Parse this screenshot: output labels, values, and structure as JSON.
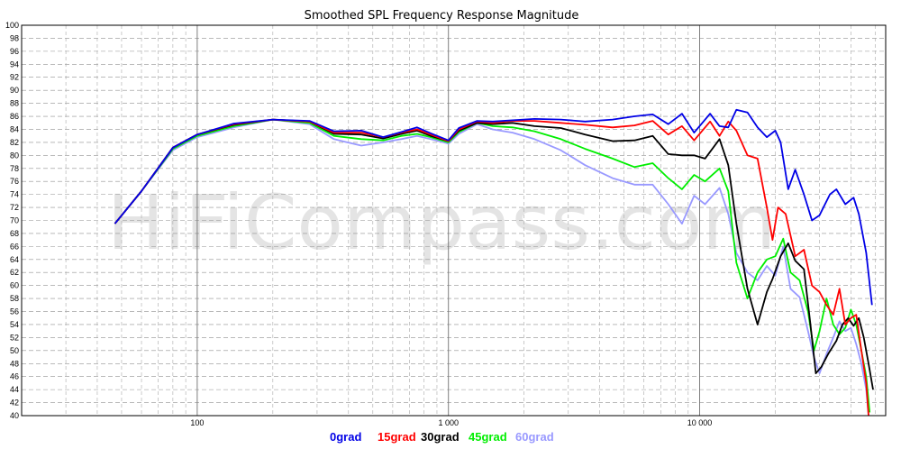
{
  "chart_data": {
    "type": "line",
    "title": "Smoothed SPL Frequency Response Magnitude",
    "watermark": "HiFiCompass.com",
    "x_scale": "log",
    "xlim": [
      20,
      55000
    ],
    "ylim": [
      40,
      100
    ],
    "grid": true,
    "legend_position": "bottom",
    "y_ticks": [
      40,
      42,
      44,
      46,
      48,
      50,
      52,
      54,
      56,
      58,
      60,
      62,
      64,
      66,
      68,
      70,
      72,
      74,
      76,
      78,
      80,
      82,
      84,
      86,
      88,
      90,
      92,
      94,
      96,
      98,
      100
    ],
    "x_ticks": [
      {
        "value": 100,
        "label": "100"
      },
      {
        "value": 1000,
        "label": "1 000"
      },
      {
        "value": 10000,
        "label": "10 000"
      }
    ],
    "series": [
      {
        "name": "0grad",
        "color": "#0000e6",
        "points": [
          [
            47,
            69.5
          ],
          [
            60,
            74.5
          ],
          [
            80,
            81.2
          ],
          [
            100,
            83.2
          ],
          [
            140,
            84.9
          ],
          [
            200,
            85.5
          ],
          [
            280,
            85.3
          ],
          [
            350,
            83.7
          ],
          [
            450,
            83.8
          ],
          [
            550,
            82.8
          ],
          [
            650,
            83.6
          ],
          [
            750,
            84.3
          ],
          [
            850,
            83.4
          ],
          [
            1000,
            82.3
          ],
          [
            1100,
            84.2
          ],
          [
            1300,
            85.3
          ],
          [
            1500,
            85.2
          ],
          [
            1800,
            85.4
          ],
          [
            2200,
            85.6
          ],
          [
            2800,
            85.5
          ],
          [
            3500,
            85.2
          ],
          [
            4500,
            85.5
          ],
          [
            5500,
            86.0
          ],
          [
            6500,
            86.3
          ],
          [
            7500,
            84.8
          ],
          [
            8500,
            86.4
          ],
          [
            9500,
            83.5
          ],
          [
            11000,
            86.4
          ],
          [
            12000,
            84.5
          ],
          [
            13000,
            84.3
          ],
          [
            14000,
            87.0
          ],
          [
            15500,
            86.6
          ],
          [
            17000,
            84.3
          ],
          [
            18500,
            82.8
          ],
          [
            20000,
            83.8
          ],
          [
            21000,
            82.0
          ],
          [
            22500,
            74.8
          ],
          [
            24000,
            77.8
          ],
          [
            26000,
            74.0
          ],
          [
            28000,
            70.0
          ],
          [
            30000,
            70.8
          ],
          [
            33000,
            74.0
          ],
          [
            35000,
            74.8
          ],
          [
            38000,
            72.5
          ],
          [
            41000,
            73.5
          ],
          [
            43000,
            71.0
          ],
          [
            46000,
            65.0
          ],
          [
            48500,
            57.0
          ]
        ]
      },
      {
        "name": "15grad",
        "color": "#ff0000",
        "points": [
          [
            47,
            69.5
          ],
          [
            60,
            74.5
          ],
          [
            80,
            81.2
          ],
          [
            100,
            83.2
          ],
          [
            140,
            84.8
          ],
          [
            200,
            85.5
          ],
          [
            280,
            85.2
          ],
          [
            350,
            83.5
          ],
          [
            450,
            83.5
          ],
          [
            550,
            82.8
          ],
          [
            650,
            83.5
          ],
          [
            750,
            84.0
          ],
          [
            850,
            83.2
          ],
          [
            1000,
            82.2
          ],
          [
            1100,
            84.0
          ],
          [
            1300,
            85.2
          ],
          [
            1500,
            85.0
          ],
          [
            1800,
            85.3
          ],
          [
            2200,
            85.3
          ],
          [
            2800,
            85.0
          ],
          [
            3500,
            84.7
          ],
          [
            4500,
            84.3
          ],
          [
            5500,
            84.6
          ],
          [
            6500,
            85.3
          ],
          [
            7500,
            83.2
          ],
          [
            8500,
            84.5
          ],
          [
            9500,
            82.3
          ],
          [
            11000,
            85.2
          ],
          [
            12000,
            83.0
          ],
          [
            13000,
            85.2
          ],
          [
            14000,
            83.8
          ],
          [
            15500,
            80.0
          ],
          [
            17000,
            79.5
          ],
          [
            18500,
            72.0
          ],
          [
            19500,
            67.0
          ],
          [
            20500,
            72.0
          ],
          [
            22000,
            71.0
          ],
          [
            24000,
            64.5
          ],
          [
            26000,
            65.5
          ],
          [
            28000,
            60.0
          ],
          [
            30000,
            59.0
          ],
          [
            32000,
            57.0
          ],
          [
            34000,
            55.5
          ],
          [
            36000,
            59.5
          ],
          [
            38000,
            54.0
          ],
          [
            40000,
            55.0
          ],
          [
            42000,
            55.5
          ],
          [
            44000,
            50.0
          ],
          [
            46000,
            45.0
          ],
          [
            47000,
            40.0
          ]
        ]
      },
      {
        "name": "30grad",
        "color": "#000000",
        "points": [
          [
            47,
            69.5
          ],
          [
            60,
            74.5
          ],
          [
            80,
            81.2
          ],
          [
            100,
            83.2
          ],
          [
            140,
            84.7
          ],
          [
            200,
            85.5
          ],
          [
            280,
            85.2
          ],
          [
            350,
            83.3
          ],
          [
            450,
            83.2
          ],
          [
            550,
            82.6
          ],
          [
            650,
            83.3
          ],
          [
            750,
            83.8
          ],
          [
            850,
            83.0
          ],
          [
            1000,
            82.2
          ],
          [
            1100,
            83.8
          ],
          [
            1300,
            85.0
          ],
          [
            1500,
            84.8
          ],
          [
            1800,
            85.0
          ],
          [
            2200,
            84.5
          ],
          [
            2800,
            84.2
          ],
          [
            3500,
            83.2
          ],
          [
            4500,
            82.2
          ],
          [
            5500,
            82.3
          ],
          [
            6500,
            83.0
          ],
          [
            7500,
            80.2
          ],
          [
            8500,
            80.0
          ],
          [
            9500,
            80.0
          ],
          [
            10500,
            79.5
          ],
          [
            12000,
            82.5
          ],
          [
            13000,
            78.5
          ],
          [
            14000,
            69.5
          ],
          [
            15500,
            59.5
          ],
          [
            17000,
            54.0
          ],
          [
            18500,
            59.0
          ],
          [
            19500,
            61.0
          ],
          [
            21000,
            64.5
          ],
          [
            22500,
            66.5
          ],
          [
            24000,
            63.8
          ],
          [
            26000,
            62.5
          ],
          [
            27500,
            54.5
          ],
          [
            29000,
            46.5
          ],
          [
            30500,
            47.5
          ],
          [
            32500,
            49.5
          ],
          [
            35000,
            51.5
          ],
          [
            37000,
            54.0
          ],
          [
            39000,
            55.0
          ],
          [
            41000,
            53.8
          ],
          [
            43000,
            55.0
          ],
          [
            45000,
            52.0
          ],
          [
            47000,
            48.0
          ],
          [
            49000,
            44.0
          ]
        ]
      },
      {
        "name": "45grad",
        "color": "#00ee00",
        "points": [
          [
            47,
            69.5
          ],
          [
            60,
            74.5
          ],
          [
            80,
            81.0
          ],
          [
            100,
            83.0
          ],
          [
            140,
            84.5
          ],
          [
            200,
            85.5
          ],
          [
            280,
            85.0
          ],
          [
            350,
            83.0
          ],
          [
            450,
            82.5
          ],
          [
            550,
            82.3
          ],
          [
            650,
            83.0
          ],
          [
            750,
            83.3
          ],
          [
            850,
            82.8
          ],
          [
            1000,
            82.0
          ],
          [
            1100,
            83.6
          ],
          [
            1300,
            85.0
          ],
          [
            1500,
            84.5
          ],
          [
            1800,
            84.3
          ],
          [
            2200,
            83.7
          ],
          [
            2800,
            82.5
          ],
          [
            3500,
            81.0
          ],
          [
            4500,
            79.5
          ],
          [
            5500,
            78.2
          ],
          [
            6500,
            78.8
          ],
          [
            7500,
            76.5
          ],
          [
            8500,
            74.8
          ],
          [
            9500,
            77.0
          ],
          [
            10500,
            76.0
          ],
          [
            12000,
            78.0
          ],
          [
            13000,
            74.5
          ],
          [
            14000,
            63.5
          ],
          [
            15500,
            58.0
          ],
          [
            17000,
            62.0
          ],
          [
            18500,
            64.0
          ],
          [
            20000,
            64.5
          ],
          [
            21500,
            67.2
          ],
          [
            23000,
            62.0
          ],
          [
            25000,
            60.8
          ],
          [
            27000,
            56.0
          ],
          [
            28500,
            50.0
          ],
          [
            30000,
            53.0
          ],
          [
            32000,
            58.0
          ],
          [
            34000,
            54.0
          ],
          [
            36000,
            52.5
          ],
          [
            38000,
            53.5
          ],
          [
            40000,
            56.3
          ],
          [
            42000,
            54.0
          ],
          [
            44000,
            50.0
          ],
          [
            46000,
            46.0
          ],
          [
            47500,
            40.5
          ]
        ]
      },
      {
        "name": "60grad",
        "color": "#9999ff",
        "points": [
          [
            47,
            69.5
          ],
          [
            60,
            74.5
          ],
          [
            80,
            80.8
          ],
          [
            100,
            82.8
          ],
          [
            140,
            84.3
          ],
          [
            200,
            85.5
          ],
          [
            280,
            84.8
          ],
          [
            350,
            82.5
          ],
          [
            450,
            81.5
          ],
          [
            550,
            82.0
          ],
          [
            650,
            82.5
          ],
          [
            750,
            83.0
          ],
          [
            850,
            82.5
          ],
          [
            1000,
            81.8
          ],
          [
            1100,
            83.3
          ],
          [
            1300,
            84.8
          ],
          [
            1500,
            84.0
          ],
          [
            1800,
            83.5
          ],
          [
            2200,
            82.5
          ],
          [
            2800,
            80.8
          ],
          [
            3500,
            78.5
          ],
          [
            4500,
            76.5
          ],
          [
            5500,
            75.5
          ],
          [
            6500,
            75.5
          ],
          [
            7500,
            72.5
          ],
          [
            8500,
            69.5
          ],
          [
            9500,
            73.8
          ],
          [
            10500,
            72.5
          ],
          [
            12000,
            75.0
          ],
          [
            13000,
            71.0
          ],
          [
            14000,
            65.0
          ],
          [
            15500,
            62.0
          ],
          [
            17000,
            60.8
          ],
          [
            18500,
            63.0
          ],
          [
            20000,
            61.5
          ],
          [
            21500,
            66.0
          ],
          [
            23000,
            59.5
          ],
          [
            25000,
            58.2
          ],
          [
            27000,
            53.0
          ],
          [
            28500,
            49.0
          ],
          [
            30000,
            46.5
          ],
          [
            32000,
            49.5
          ],
          [
            34000,
            52.0
          ],
          [
            36000,
            54.5
          ],
          [
            38000,
            53.0
          ],
          [
            40000,
            53.5
          ],
          [
            42000,
            51.0
          ],
          [
            44000,
            48.0
          ],
          [
            46000,
            44.0
          ],
          [
            47000,
            40.0
          ]
        ]
      }
    ]
  }
}
